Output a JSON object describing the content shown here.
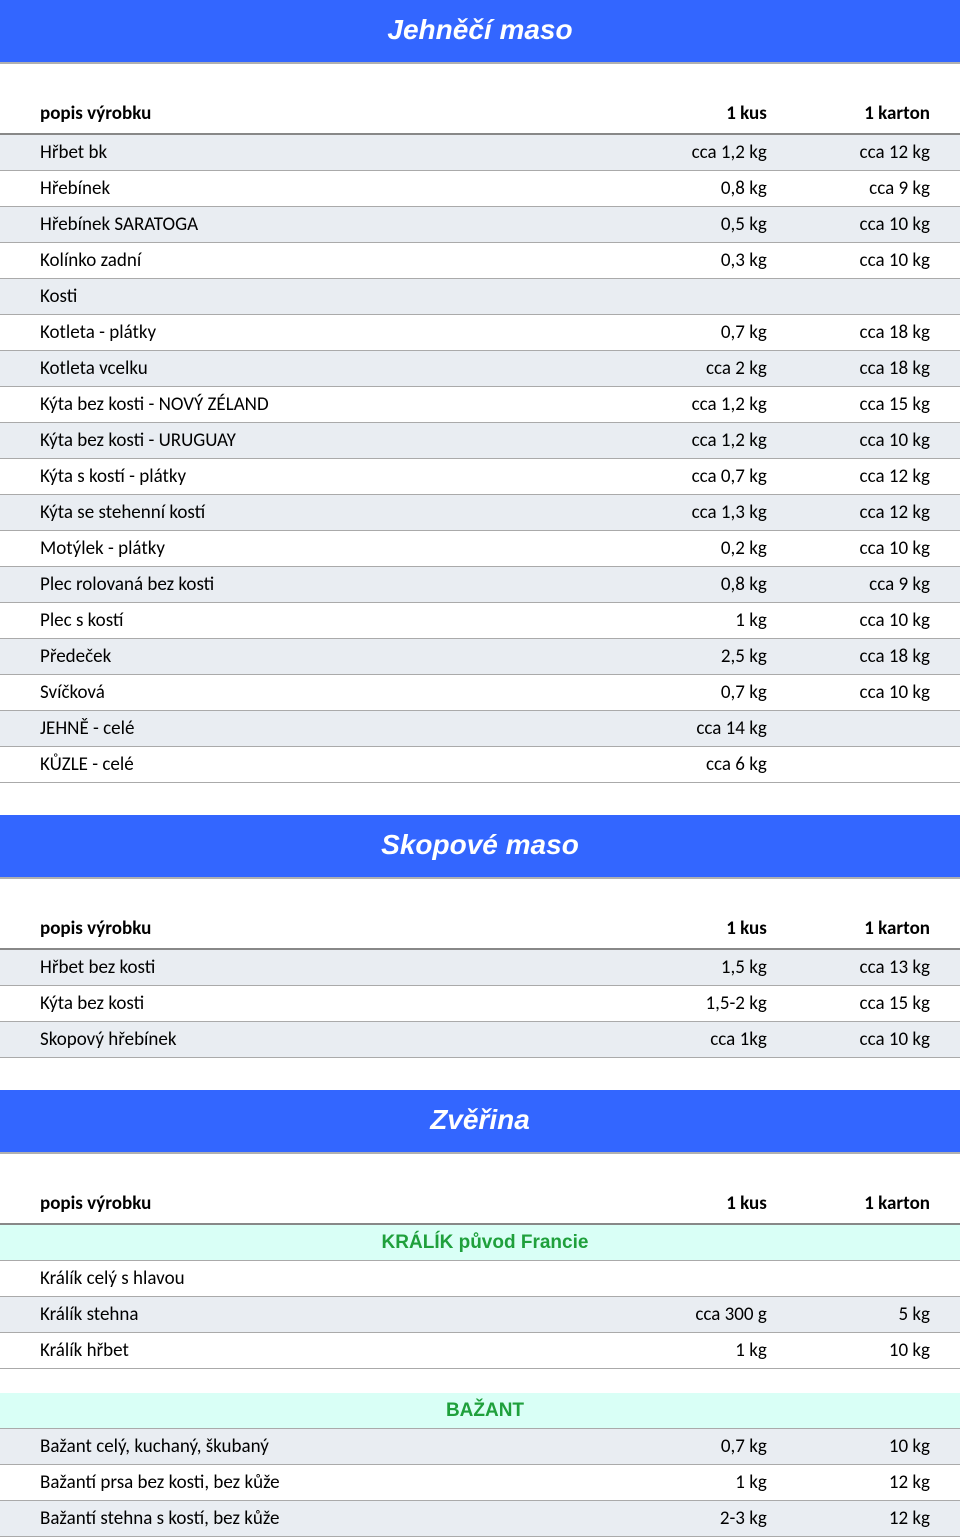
{
  "sections": {
    "jehneci": {
      "title": "Jehněčí maso",
      "header": {
        "name": "popis výrobku",
        "q1": "1 kus",
        "q2": "1 karton"
      },
      "rows": [
        {
          "name": "Hřbet bk",
          "q1": "cca 1,2 kg",
          "q2": "cca 12 kg"
        },
        {
          "name": "Hřebínek",
          "q1": "0,8 kg",
          "q2": "cca 9 kg"
        },
        {
          "name": "Hřebínek SARATOGA",
          "q1": "0,5 kg",
          "q2": "cca 10 kg"
        },
        {
          "name": "Kolínko zadní",
          "q1": "0,3 kg",
          "q2": "cca 10 kg"
        },
        {
          "name": "Kosti",
          "q1": "",
          "q2": ""
        },
        {
          "name": "Kotleta - plátky",
          "q1": "0,7 kg",
          "q2": "cca 18 kg"
        },
        {
          "name": "Kotleta vcelku",
          "q1": "cca 2 kg",
          "q2": "cca 18 kg"
        },
        {
          "name": "Kýta bez kosti - NOVÝ ZÉLAND",
          "q1": "cca 1,2 kg",
          "q2": "cca 15 kg"
        },
        {
          "name": "Kýta bez kosti - URUGUAY",
          "q1": "cca 1,2 kg",
          "q2": "cca 10 kg"
        },
        {
          "name": "Kýta s kostí - plátky",
          "q1": "cca 0,7 kg",
          "q2": "cca 12 kg"
        },
        {
          "name": "Kýta se stehenní kostí",
          "q1": "cca 1,3 kg",
          "q2": "cca 12 kg"
        },
        {
          "name": "Motýlek - plátky",
          "q1": "0,2 kg",
          "q2": "cca 10 kg"
        },
        {
          "name": "Plec rolovaná bez kosti",
          "q1": "0,8 kg",
          "q2": "cca 9 kg"
        },
        {
          "name": "Plec s kostí",
          "q1": "1 kg",
          "q2": "cca 10 kg"
        },
        {
          "name": "Předeček",
          "q1": "2,5 kg",
          "q2": "cca 18 kg"
        },
        {
          "name": "Svíčková",
          "q1": "0,7 kg",
          "q2": "cca 10 kg"
        },
        {
          "name": "JEHNĚ - celé",
          "q1": "cca 14 kg",
          "q2": ""
        },
        {
          "name": "KŮZLE - celé",
          "q1": "cca 6 kg",
          "q2": ""
        }
      ]
    },
    "skopove": {
      "title": "Skopové maso",
      "header": {
        "name": "popis výrobku",
        "q1": "1 kus",
        "q2": "1 karton"
      },
      "rows": [
        {
          "name": "Hřbet bez kosti",
          "q1": "1,5 kg",
          "q2": "cca 13 kg"
        },
        {
          "name": "Kýta bez kosti",
          "q1": "1,5-2 kg",
          "q2": "cca 15 kg"
        },
        {
          "name": "Skopový hřebínek",
          "q1": "cca 1kg",
          "q2": "cca 10 kg"
        }
      ]
    },
    "zverina": {
      "title": "Zvěřina",
      "header": {
        "name": "popis výrobku",
        "q1": "1 kus",
        "q2": "1 karton"
      },
      "subsections": {
        "kralik": {
          "title": "KRÁLÍK původ Francie",
          "rows": [
            {
              "name": "Králík celý s hlavou",
              "q1": "",
              "q2": ""
            },
            {
              "name": "Králík stehna",
              "q1": "cca 300 g",
              "q2": "5 kg"
            },
            {
              "name": "Králík hřbet",
              "q1": "1 kg",
              "q2": "10 kg"
            }
          ]
        },
        "bazant": {
          "title": "BAŽANT",
          "rows": [
            {
              "name": "Bažant celý, kuchaný, škubaný",
              "q1": "0,7 kg",
              "q2": "10 kg"
            },
            {
              "name": "Bažantí prsa bez kosti, bez kůže",
              "q1": "1 kg",
              "q2": "12 kg"
            },
            {
              "name": "Bažantí stehna s kostí, bez kůže",
              "q1": "2-3 kg",
              "q2": "12 kg"
            }
          ]
        }
      }
    }
  },
  "colors": {
    "header_bg": "#3366ff",
    "header_text": "#ffffff",
    "row_stripe": "#e9edf2",
    "row_plain": "#ffffff",
    "subhead_bg": "#d9fff6",
    "subhead_text": "#1fa03c",
    "border": "#aaaaaa",
    "header_border": "#888888"
  },
  "typography": {
    "section_title_font": "Comic Sans MS",
    "section_title_size_pt": 21,
    "body_font": "Calibri",
    "body_size_pt": 14
  }
}
